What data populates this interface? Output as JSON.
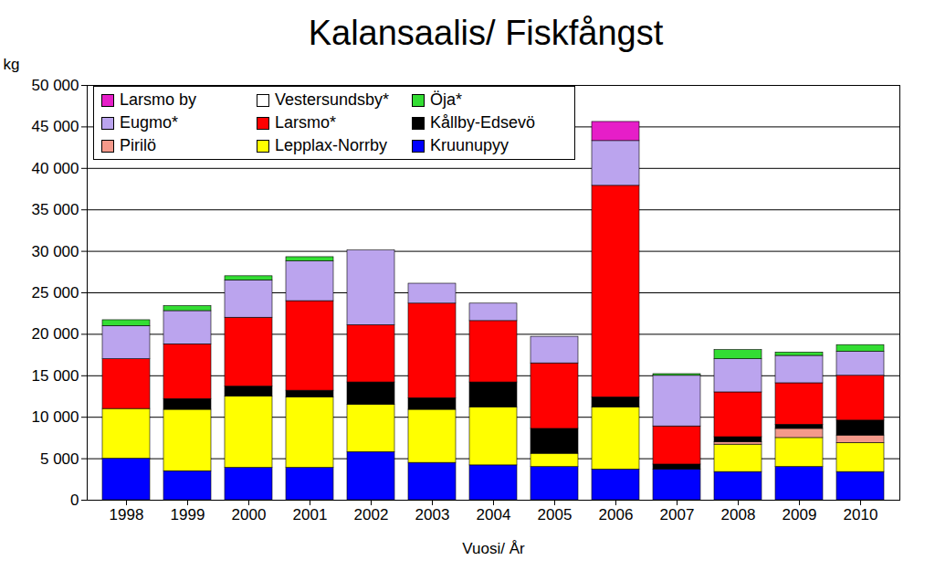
{
  "chart_data": {
    "type": "bar",
    "stacked": true,
    "title": "Kalansaalis/ Fiskfångst",
    "y_label": "kg",
    "x_label": "Vuosi/ År",
    "categories": [
      "1998",
      "1999",
      "2000",
      "2001",
      "2002",
      "2003",
      "2004",
      "2005",
      "2006",
      "2007",
      "2008",
      "2009",
      "2010"
    ],
    "series": [
      {
        "name": "Kruunupyy",
        "color": "#0000ff",
        "values": [
          5000,
          3500,
          3900,
          3900,
          5800,
          4500,
          4200,
          4000,
          3700,
          3700,
          3400,
          4000,
          3400
        ]
      },
      {
        "name": "Lepplax-Norrby",
        "color": "#ffff00",
        "values": [
          6000,
          7400,
          8600,
          8500,
          5700,
          6400,
          7000,
          1600,
          7500,
          0,
          3300,
          3500,
          3500
        ]
      },
      {
        "name": "Pirilö",
        "color": "#f4998a",
        "values": [
          0,
          0,
          0,
          0,
          0,
          0,
          0,
          0,
          0,
          0,
          300,
          1100,
          900
        ]
      },
      {
        "name": "Kållby-Edsevö",
        "color": "#000000",
        "values": [
          0,
          1300,
          1200,
          800,
          2700,
          1400,
          3000,
          3000,
          1200,
          600,
          600,
          500,
          1800
        ]
      },
      {
        "name": "Larsmo*",
        "color": "#ff0000",
        "values": [
          6000,
          6600,
          8300,
          10800,
          6900,
          11400,
          7400,
          7900,
          25500,
          4600,
          5400,
          5000,
          5400
        ]
      },
      {
        "name": "Eugmo*",
        "color": "#bba4ee",
        "values": [
          4000,
          4000,
          4500,
          4800,
          9000,
          2400,
          2100,
          3200,
          5400,
          6100,
          4000,
          3300,
          2900
        ]
      },
      {
        "name": "Öja*",
        "color": "#33dd33",
        "values": [
          700,
          600,
          500,
          500,
          0,
          0,
          0,
          0,
          0,
          200,
          1100,
          400,
          800
        ]
      },
      {
        "name": "Vestersundsby*",
        "color": "#ffffff",
        "values": [
          0,
          0,
          0,
          0,
          0,
          0,
          0,
          0,
          0,
          0,
          0,
          0,
          0
        ]
      },
      {
        "name": "Larsmo by",
        "color": "#e61ec8",
        "values": [
          0,
          0,
          0,
          0,
          0,
          0,
          0,
          0,
          2300,
          0,
          0,
          0,
          0
        ]
      }
    ],
    "ylim": [
      0,
      50000
    ],
    "yticks": [
      {
        "value": 0,
        "label": "0"
      },
      {
        "value": 5000,
        "label": "5 000"
      },
      {
        "value": 10000,
        "label": "10 000"
      },
      {
        "value": 15000,
        "label": "15 000"
      },
      {
        "value": 20000,
        "label": "20 000"
      },
      {
        "value": 25000,
        "label": "25 000"
      },
      {
        "value": 30000,
        "label": "30 000"
      },
      {
        "value": 35000,
        "label": "35 000"
      },
      {
        "value": 40000,
        "label": "40 000"
      },
      {
        "value": 45000,
        "label": "45 000"
      },
      {
        "value": 50000,
        "label": "50 000"
      }
    ],
    "grid": true,
    "legend": "top-left"
  }
}
